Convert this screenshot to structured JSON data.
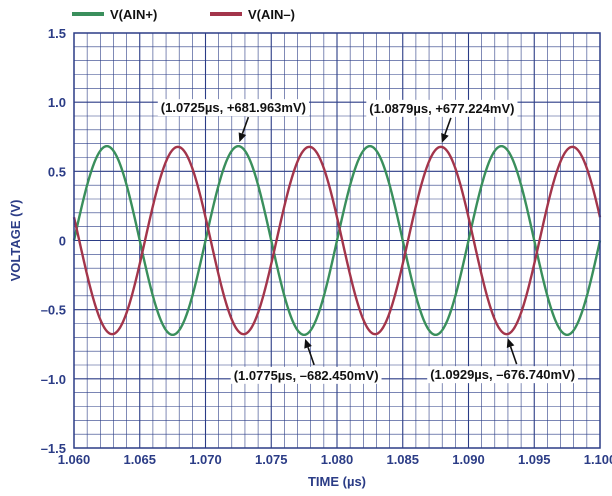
{
  "chart_data": {
    "type": "line",
    "xlabel": "TIME (µs)",
    "ylabel": "VOLTAGE (V)",
    "xlim": [
      1.06,
      1.1
    ],
    "ylim": [
      -1.5,
      1.5
    ],
    "x_ticks": [
      "1.060",
      "1.065",
      "1.070",
      "1.075",
      "1.080",
      "1.085",
      "1.090",
      "1.095",
      "1.100"
    ],
    "y_ticks": [
      "1.5",
      "1.0",
      "0.5",
      "0",
      "–0.5",
      "–1.0",
      "–1.5"
    ],
    "grid": true,
    "legend_placement": "top-left",
    "series": [
      {
        "name": "V(AIN+)",
        "color": "#3a8f5c",
        "waveform": "sine",
        "amplitude": 0.682,
        "period_us": 0.01,
        "peak_at_us": 1.0725
      },
      {
        "name": "V(AIN–)",
        "color": "#a3354b",
        "waveform": "sine",
        "amplitude": 0.677,
        "period_us": 0.01,
        "peak_at_us": 1.0679
      }
    ],
    "annotations": [
      {
        "text": "(1.0725µs, +681.963mV)",
        "x": 1.0725,
        "y": 0.682
      },
      {
        "text": "(1.0879µs, +677.224mV)",
        "x": 1.0879,
        "y": 0.677
      },
      {
        "text": "(1.0775µs, –682.450mV)",
        "x": 1.0775,
        "y": -0.682
      },
      {
        "text": "(1.0929µs, –676.740mV)",
        "x": 1.0929,
        "y": -0.677
      }
    ]
  }
}
